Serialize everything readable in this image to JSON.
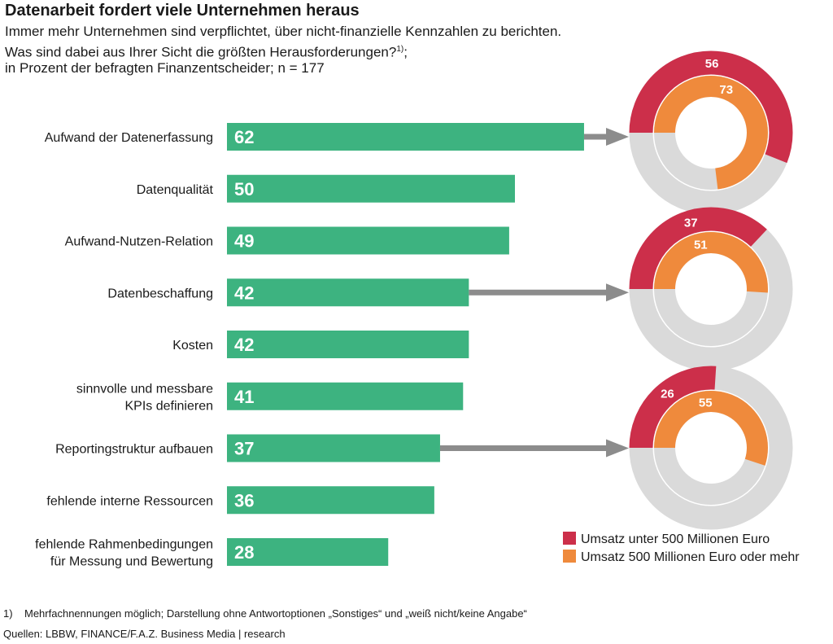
{
  "title": "Datenarbeit fordert viele Unternehmen heraus",
  "subtitle_line1": "Immer mehr Unternehmen sind verpflichtet, über nicht-finanzielle Kennzahlen zu berichten.",
  "subtitle_line2": "Was sind dabei aus Ihrer Sicht die größten Herausforderungen?",
  "subtitle_sup": "1)",
  "subtitle_line2_end": ";",
  "subtitle_line3": "in Prozent der befragten Finanzentscheider; n = 177",
  "footnote_number": "1)",
  "footnote_text": "Mehrfachnennungen möglich; Darstellung ohne Antwortoptionen „Sonstiges“ und „weiß nicht/keine Angabe“",
  "source": "Quellen: LBBW, FINANCE/F.A.Z. Business Media | research",
  "colors": {
    "bar": "#3db380",
    "under_500": "#cc2f4a",
    "over_500": "#ef8a3c",
    "ring_bg": "#dadada",
    "arrow": "#8c8c8c"
  },
  "chart_data": [
    {
      "type": "bar",
      "orientation": "horizontal",
      "categories": [
        [
          "Aufwand der Datenerfassung"
        ],
        [
          "Datenqualität"
        ],
        [
          "Aufwand-Nutzen-Relation"
        ],
        [
          "Datenbeschaffung"
        ],
        [
          "Kosten"
        ],
        [
          "sinnvolle und messbare",
          "KPIs definieren"
        ],
        [
          "Reportingstruktur aufbauen"
        ],
        [
          "fehlende interne Ressourcen"
        ],
        [
          "fehlende Rahmenbedingungen",
          "für Messung und Bewertung"
        ]
      ],
      "values": [
        62,
        50,
        49,
        42,
        42,
        41,
        37,
        36,
        28
      ],
      "value_max": 100
    },
    {
      "type": "pie",
      "style": "nested-donut",
      "legend": [
        "Umsatz unter 500 Millionen Euro",
        "Umsatz 500 Millionen Euro oder mehr"
      ],
      "legend_placement": "bottom-right",
      "rings": [
        {
          "category": "Aufwand der Datenerfassung",
          "under_500": 56,
          "over_500": 73
        },
        {
          "category": "Datenbeschaffung",
          "under_500": 37,
          "over_500": 51
        },
        {
          "category": "Reportingstruktur aufbauen",
          "under_500": 26,
          "over_500": 55
        }
      ]
    }
  ]
}
